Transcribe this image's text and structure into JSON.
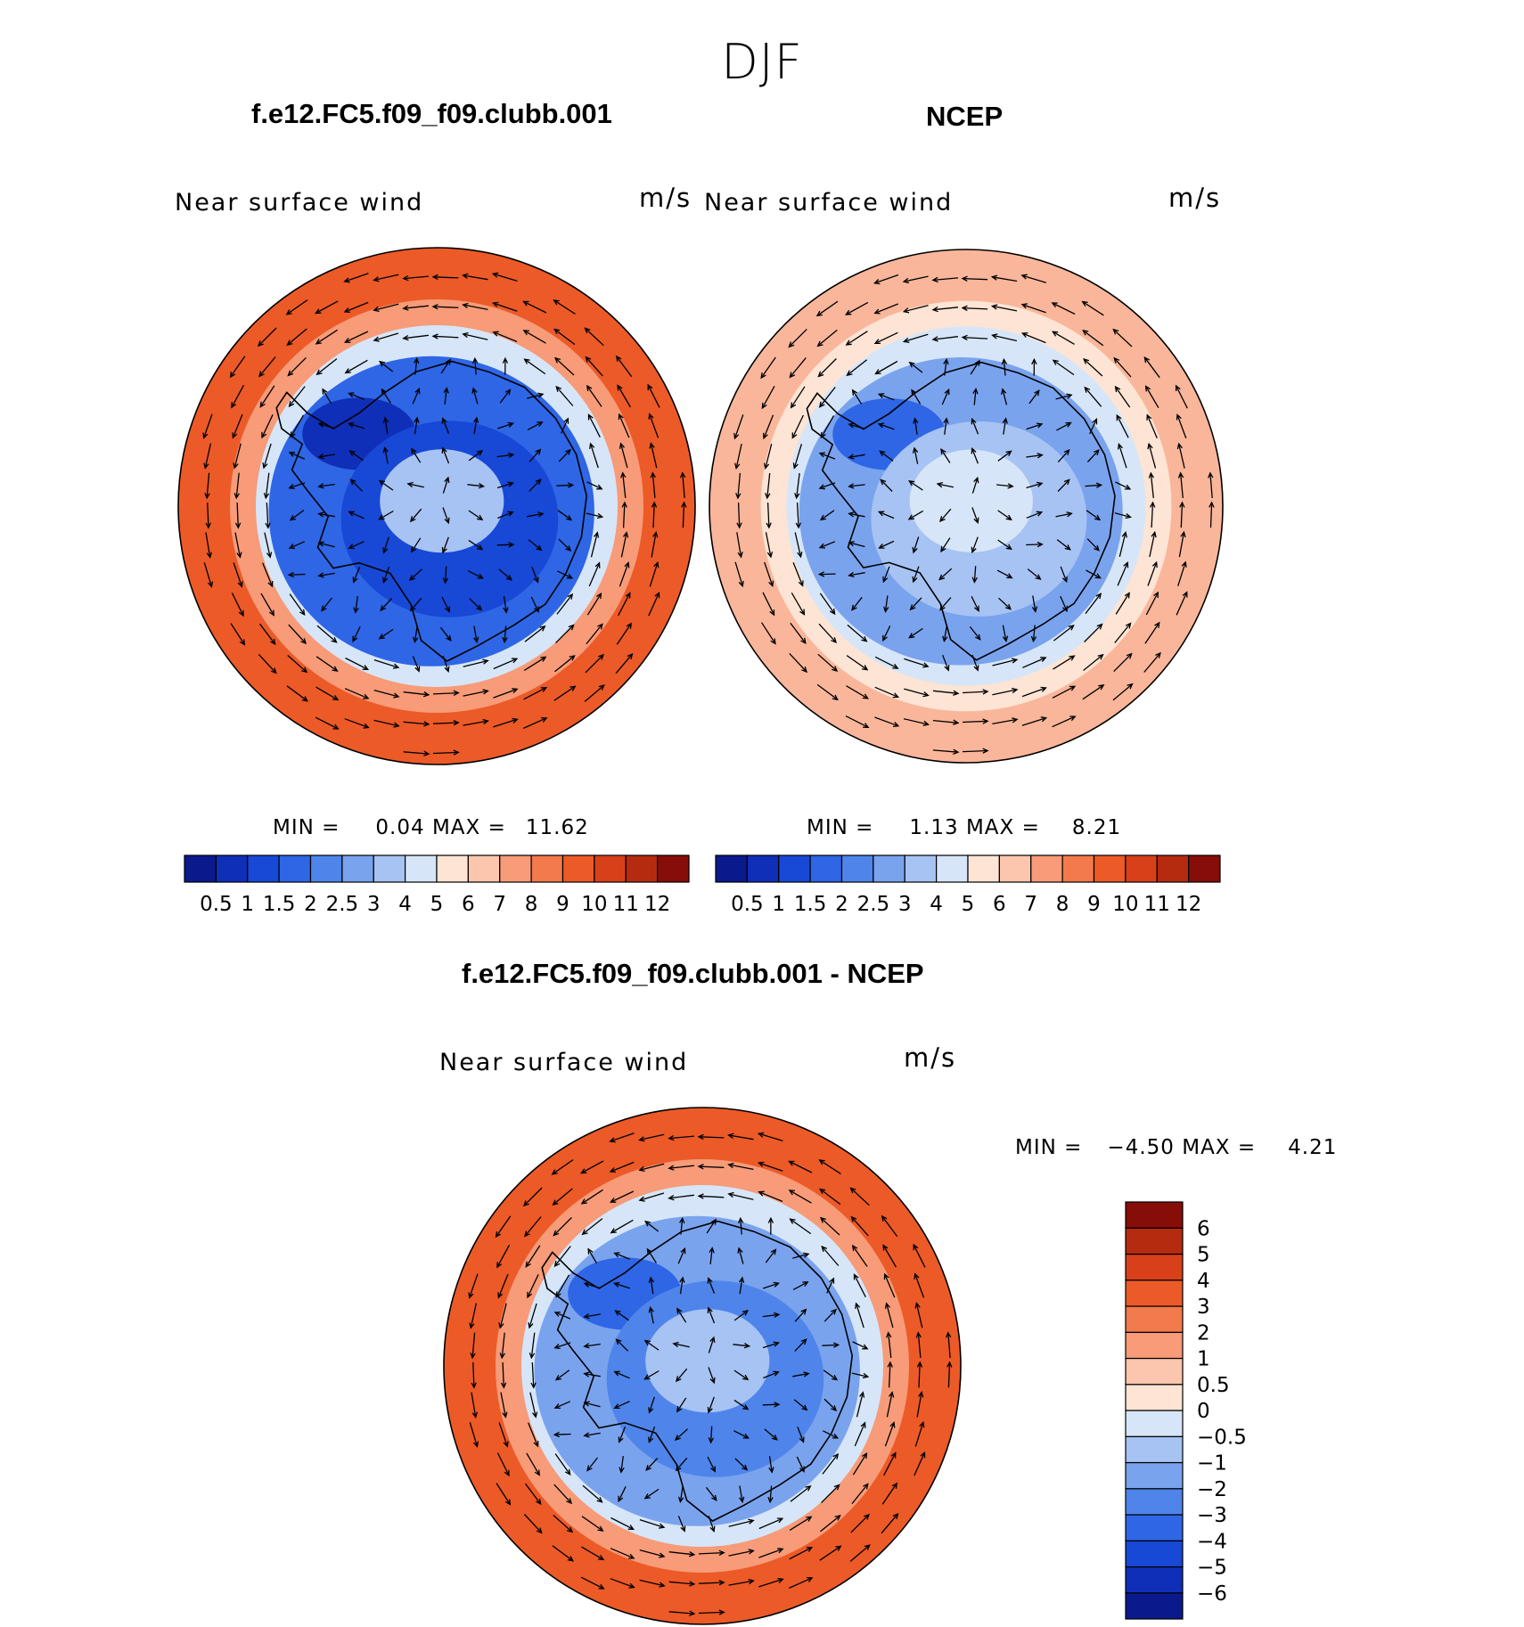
{
  "figure": {
    "season": "DJF",
    "panels": [
      {
        "id": "model",
        "title": "f.e12.FC5.f09_f09.clubb.001",
        "variable": "Near surface wind",
        "units": "m/s",
        "min_label": "MIN =",
        "min_value": "0.04",
        "max_label": "MAX =",
        "max_value": "11.62"
      },
      {
        "id": "obs",
        "title": "NCEP",
        "variable": "Near surface wind",
        "units": "m/s",
        "min_label": "MIN =",
        "min_value": "1.13",
        "max_label": "MAX =",
        "max_value": "8.21"
      },
      {
        "id": "diff",
        "title": "f.e12.FC5.f09_f09.clubb.001 - NCEP",
        "variable": "Near surface wind",
        "units": "m/s",
        "min_label": "MIN =",
        "min_value": "−4.50",
        "max_label": "MAX =",
        "max_value": "4.21"
      }
    ]
  },
  "colorbars": {
    "speed": {
      "colors": [
        "#0a1a8c",
        "#0f2fb8",
        "#1848d6",
        "#2e66e6",
        "#4f85ea",
        "#7aa3ee",
        "#a7c3f3",
        "#d6e6f8",
        "#fde4d4",
        "#fbc6ad",
        "#f79b78",
        "#f27a4d",
        "#ec5a28",
        "#d8401a",
        "#b52b10",
        "#870d08"
      ],
      "labels": [
        "0.5",
        "1",
        "1.5",
        "2",
        "2.5",
        "3",
        "4",
        "5",
        "6",
        "7",
        "8",
        "9",
        "10",
        "11",
        "12"
      ]
    },
    "diff": {
      "colors": [
        "#0a1a8c",
        "#0f2fb8",
        "#1848d6",
        "#2e66e6",
        "#4f85ea",
        "#7aa3ee",
        "#a7c3f3",
        "#d6e6f8",
        "#fde4d4",
        "#fbc6ad",
        "#f79b78",
        "#f27a4d",
        "#ec5a28",
        "#d8401a",
        "#b52b10",
        "#870d08"
      ],
      "labels": [
        "−6",
        "−5",
        "−4",
        "−3",
        "−2",
        "−1",
        "−0.5",
        "0",
        "0.5",
        "1",
        "2",
        "3",
        "4",
        "5",
        "6"
      ]
    }
  },
  "maps": {
    "model": {
      "outer": "#ec5a28",
      "mid": "#f79b78",
      "ring": "#d6e6f8",
      "inner": "#2e66e6",
      "core": "#1848d6",
      "polar": "#a7c3f3",
      "deep": "#0f2fb8"
    },
    "obs": {
      "outer": "#f9b69a",
      "mid": "#fde4d4",
      "ring": "#d6e6f8",
      "inner": "#7aa3ee",
      "core": "#a7c3f3",
      "polar": "#d6e6f8",
      "deep": "#2e66e6"
    },
    "diff": {
      "outer": "#ec5a28",
      "mid": "#f79b78",
      "ring": "#d6e6f8",
      "inner": "#7aa3ee",
      "core": "#4f85ea",
      "polar": "#a7c3f3",
      "deep": "#2e66e6"
    }
  }
}
